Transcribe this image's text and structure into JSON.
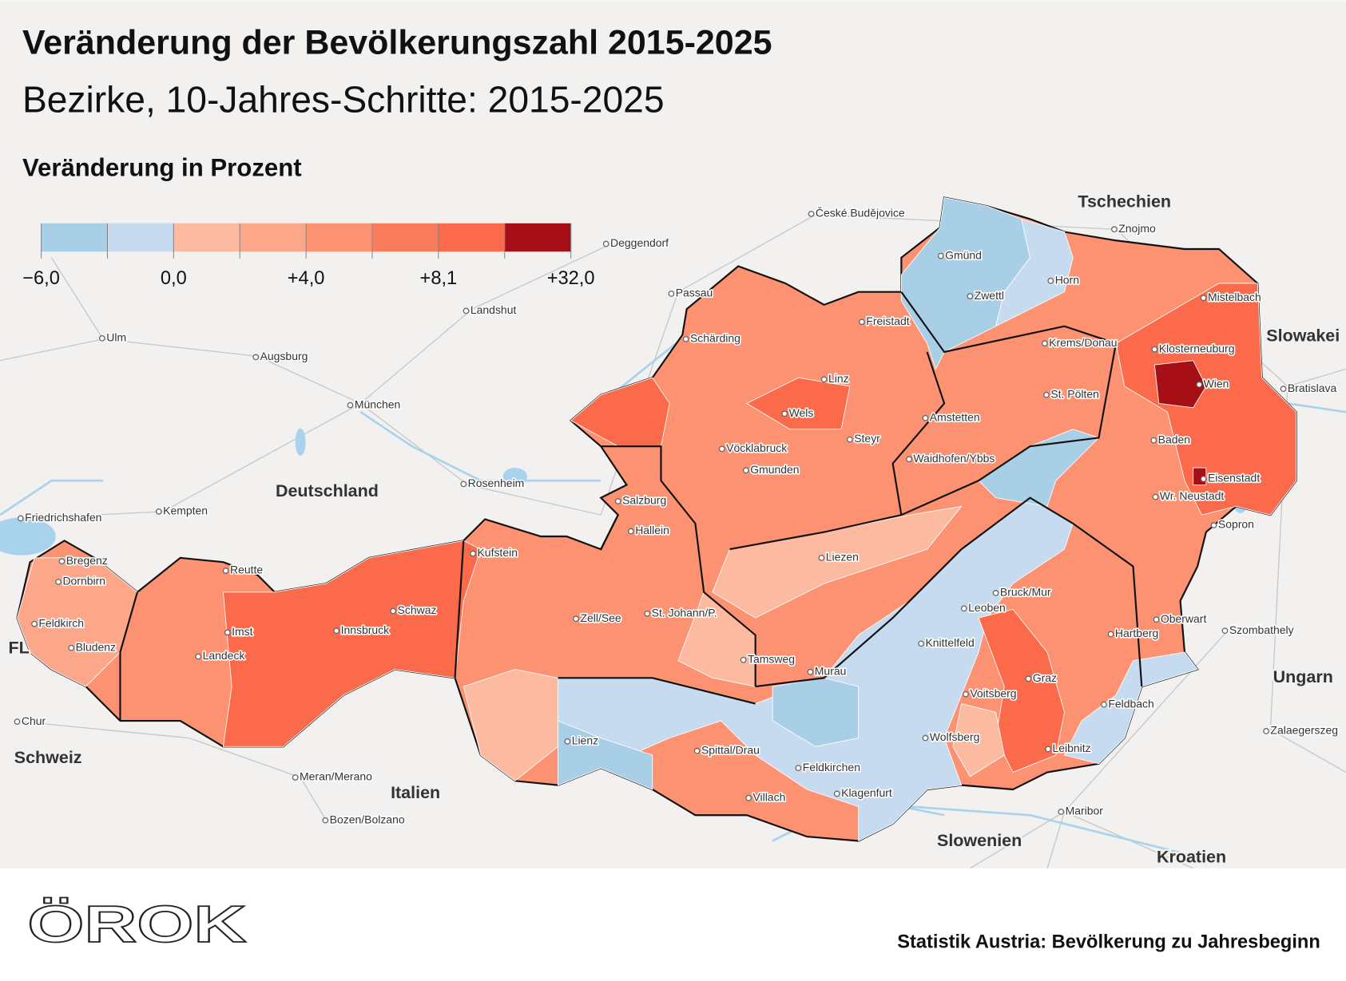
{
  "header": {
    "title": "Veränderung der Bevölkerungszahl 2015-2025",
    "subtitle": "Bezirke, 10-Jahres-Schritte: 2015-2025",
    "legend_title": "Veränderung in Prozent"
  },
  "legend": {
    "colors": [
      "#a9cfe6",
      "#c6dbef",
      "#fcbba1",
      "#fca78a",
      "#fc9272",
      "#fb7c5c",
      "#fb6a4a",
      "#a50f15"
    ],
    "labels": [
      "−6,0",
      "0,0",
      "+4,0",
      "+8,1",
      "+32,0"
    ]
  },
  "map": {
    "countries": [
      "Tschechien",
      "Slowakei",
      "Ungarn",
      "Slowenien",
      "Kroatien",
      "Italien",
      "Schweiz",
      "Deutschland",
      "FL"
    ],
    "cities": [
      "Bregenz",
      "Dornbirn",
      "Feldkirch",
      "Bludenz",
      "Reutte",
      "Imst",
      "Landeck",
      "Innsbruck",
      "Schwaz",
      "Kufstein",
      "Zell/See",
      "St. Johann/P.",
      "Salzburg",
      "Hallein",
      "Lienz",
      "Spittal/Drau",
      "Villach",
      "Feldkirchen",
      "Klagenfurt",
      "Tamsweg",
      "Murau",
      "Liezen",
      "Knittelfeld",
      "Leoben",
      "Bruck/Mur",
      "Voitsberg",
      "Graz",
      "Wolfsberg",
      "Leibnitz",
      "Feldbach",
      "Hartberg",
      "Oberwart",
      "Eisenstadt",
      "Wr. Neustadt",
      "Baden",
      "Wien",
      "Klosterneuburg",
      "St. Pölten",
      "Krems/Donau",
      "Amstetten",
      "Waidhofen/Ybbs",
      "Steyr",
      "Linz",
      "Wels",
      "Vöcklabruck",
      "Gmunden",
      "Schärding",
      "Freistadt",
      "Zwettl",
      "Gmünd",
      "Horn",
      "Mistelbach"
    ],
    "foreign_cities": [
      "České Budějovice",
      "Znojmo",
      "Deggendorf",
      "Passau",
      "Landshut",
      "Ulm",
      "Augsburg",
      "München",
      "Rosenheim",
      "Kempten",
      "Friedrichshafen",
      "Chur",
      "Meran/Merano",
      "Bozen/Bolzano",
      "Maribor",
      "Zalaegerszeg",
      "Szombathely",
      "Sopron",
      "Bratislava"
    ]
  },
  "footer": {
    "logo": "ÖROK",
    "source": "Statistik Austria: Bevölkerung zu Jahresbeginn"
  }
}
